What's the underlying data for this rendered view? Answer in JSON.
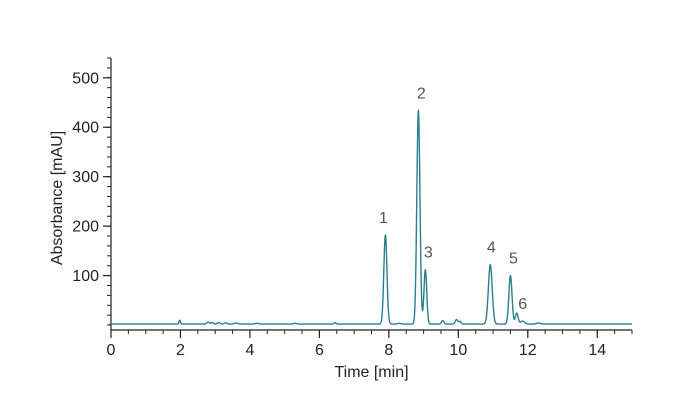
{
  "chart_data": {
    "type": "line",
    "title": "",
    "xlabel": "Time [min]",
    "ylabel": "Absorbance [mAU]",
    "xlim": [
      0,
      15
    ],
    "ylim": [
      -10,
      540
    ],
    "x_ticks": [
      0,
      2,
      4,
      6,
      8,
      10,
      12,
      14
    ],
    "x_tick_labels": [
      "0",
      "2",
      "4",
      "6",
      "8",
      "10",
      "12",
      "14"
    ],
    "x_minor_step": 0.5,
    "y_ticks": [
      100,
      200,
      300,
      400,
      500
    ],
    "y_tick_labels": [
      "100",
      "200",
      "300",
      "400",
      "500"
    ],
    "y_minor_step": 20,
    "grid": false,
    "legend": "none",
    "line_color": "#2b7d90",
    "label_color": "#555555",
    "baseline": 2,
    "noise": [
      {
        "t": 1.98,
        "h": 8,
        "w": 0.02
      },
      {
        "t": 2.8,
        "h": 4,
        "w": 0.04
      },
      {
        "t": 2.92,
        "h": 3,
        "w": 0.03
      },
      {
        "t": 3.1,
        "h": 3,
        "w": 0.04
      },
      {
        "t": 3.3,
        "h": 2.5,
        "w": 0.04
      },
      {
        "t": 3.6,
        "h": 2,
        "w": 0.05
      },
      {
        "t": 4.2,
        "h": 1.5,
        "w": 0.06
      },
      {
        "t": 5.3,
        "h": 1.5,
        "w": 0.05
      },
      {
        "t": 6.45,
        "h": 3,
        "w": 0.03
      },
      {
        "t": 8.3,
        "h": 1.5,
        "w": 0.05
      },
      {
        "t": 9.55,
        "h": 7,
        "w": 0.035
      },
      {
        "t": 9.95,
        "h": 9,
        "w": 0.04
      },
      {
        "t": 10.05,
        "h": 5,
        "w": 0.03
      },
      {
        "t": 11.85,
        "h": 6,
        "w": 0.06
      },
      {
        "t": 12.3,
        "h": 2,
        "w": 0.06
      }
    ],
    "series": [
      {
        "peaks": [
          {
            "label": "1",
            "t": 7.9,
            "height": 180,
            "width": 0.045
          },
          {
            "label": "2",
            "t": 8.85,
            "height": 432,
            "width": 0.045
          },
          {
            "label": "3",
            "t": 9.05,
            "height": 110,
            "width": 0.04
          },
          {
            "label": "4",
            "t": 10.92,
            "height": 120,
            "width": 0.055
          },
          {
            "label": "5",
            "t": 11.5,
            "height": 98,
            "width": 0.045
          },
          {
            "label": "6",
            "t": 11.68,
            "height": 22,
            "width": 0.04
          }
        ]
      }
    ]
  }
}
